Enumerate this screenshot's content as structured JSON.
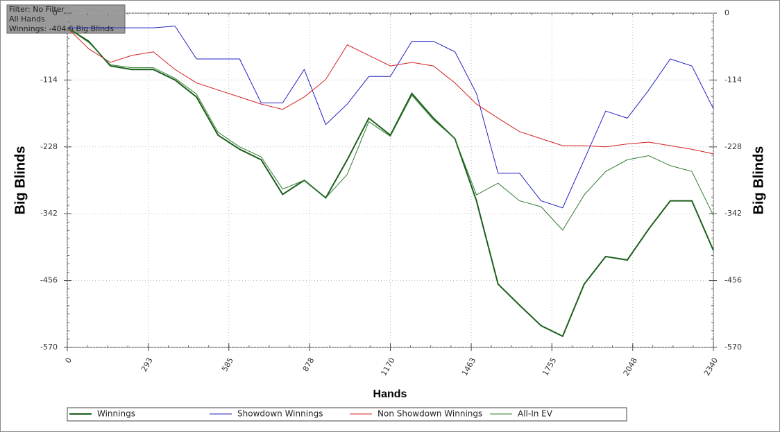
{
  "chart_data": {
    "type": "line",
    "annotations": [
      "Filter: No Filter",
      "All Hands",
      "Winnings: -404.6 Big Blinds"
    ],
    "x_label": "Hands",
    "y_label": "Big Blinds",
    "x": [
      0,
      78,
      156,
      234,
      312,
      390,
      468,
      546,
      624,
      702,
      780,
      858,
      936,
      1014,
      1092,
      1170,
      1248,
      1326,
      1404,
      1482,
      1560,
      1638,
      1716,
      1794,
      1872,
      1950,
      2028,
      2106,
      2184,
      2262,
      2340
    ],
    "series": [
      {
        "name": "Winnings",
        "color": "#1a5e1a",
        "width": 2,
        "values": [
          -25,
          -48,
          -90,
          -96,
          -96,
          -114,
          -143,
          -208,
          -232,
          -250,
          -309,
          -285,
          -315,
          -250,
          -179,
          -208,
          -137,
          -179,
          -214,
          -320,
          -462,
          -498,
          -533,
          -551,
          -462,
          -415,
          -421,
          -368,
          -320,
          -320,
          -404.6
        ]
      },
      {
        "name": "Showdown Winnings",
        "color": "#2020c0",
        "width": 1,
        "values": [
          -25,
          -25,
          -25,
          -25,
          -25,
          -22,
          -78,
          -78,
          -78,
          -153,
          -153,
          -96,
          -190,
          -155,
          -108,
          -108,
          -48,
          -48,
          -66,
          -137,
          -273,
          -273,
          -320,
          -332,
          -250,
          -167,
          -179,
          -131,
          -78,
          -90,
          -163
        ]
      },
      {
        "name": "Non Showdown Winnings",
        "color": "#d42020",
        "width": 1,
        "values": [
          -25,
          -61,
          -84,
          -72,
          -66,
          -96,
          -119,
          -131,
          -143,
          -155,
          -164,
          -143,
          -113,
          -54,
          -72,
          -90,
          -84,
          -90,
          -119,
          -155,
          -179,
          -202,
          -214,
          -226,
          -226,
          -228,
          -223,
          -220,
          -226,
          -232,
          -240
        ]
      },
      {
        "name": "All-In EV",
        "color": "#2e7d2e",
        "width": 1,
        "values": [
          -25,
          -50,
          -88,
          -93,
          -93,
          -111,
          -138,
          -203,
          -228,
          -245,
          -300,
          -285,
          -315,
          -275,
          -185,
          -210,
          -140,
          -182,
          -214,
          -310,
          -290,
          -320,
          -330,
          -370,
          -310,
          -270,
          -250,
          -243,
          -260,
          -270,
          -345
        ]
      }
    ],
    "xlim": [
      0,
      2340
    ],
    "xticks": [
      0,
      293,
      585,
      878,
      1170,
      1463,
      1755,
      2048,
      2340
    ],
    "ylim": [
      -570,
      0
    ],
    "yticks": [
      0,
      -114,
      -228,
      -342,
      -456,
      -570
    ],
    "grid": true,
    "legend": "bottom"
  }
}
